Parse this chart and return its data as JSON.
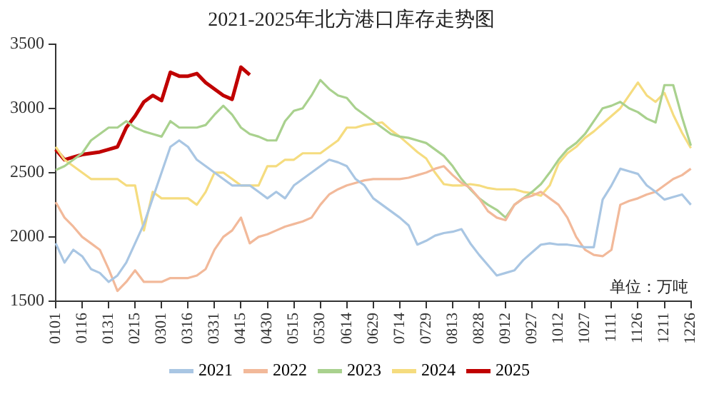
{
  "chart_data": {
    "type": "line",
    "title": "2021-2025年北方港口库存走势图",
    "categories": [
      "0101",
      null,
      null,
      "0116",
      null,
      null,
      "0131",
      null,
      null,
      "0215",
      null,
      null,
      "0301",
      null,
      null,
      "0316",
      null,
      null,
      "0331",
      null,
      null,
      "0415",
      null,
      null,
      "0430",
      null,
      null,
      "0515",
      null,
      null,
      "0530",
      null,
      null,
      "0614",
      null,
      null,
      "0629",
      null,
      null,
      "0714",
      null,
      null,
      "0729",
      null,
      null,
      "0813",
      null,
      null,
      "0828",
      null,
      null,
      "0912",
      null,
      null,
      "0927",
      null,
      null,
      "1012",
      null,
      null,
      "1027",
      null,
      null,
      "1111",
      null,
      null,
      "1126",
      null,
      null,
      "1211",
      null,
      null,
      "1226"
    ],
    "series": [
      {
        "name": "2021",
        "color": "#a9c6e3",
        "values": [
          1950,
          1800,
          1900,
          1850,
          1750,
          1720,
          1650,
          1700,
          1800,
          1950,
          2100,
          2300,
          2500,
          2700,
          2750,
          2700,
          2600,
          2550,
          2500,
          2450,
          2400,
          2400,
          2400,
          2350,
          2300,
          2350,
          2300,
          2400,
          2450,
          2500,
          2550,
          2600,
          2580,
          2550,
          2450,
          2400,
          2300,
          2250,
          2200,
          2150,
          2090,
          1940,
          1970,
          2010,
          2030,
          2040,
          2060,
          1950,
          1860,
          1780,
          1700,
          1720,
          1740,
          1820,
          1880,
          1940,
          1950,
          1940,
          1940,
          1930,
          1920,
          1920,
          2290,
          2400,
          2530,
          2510,
          2490,
          2400,
          2350,
          2290,
          2310,
          2330,
          2250
        ]
      },
      {
        "name": "2022",
        "color": "#f2b99a",
        "values": [
          2270,
          2150,
          2080,
          2000,
          1950,
          1900,
          1750,
          1580,
          1650,
          1740,
          1650,
          1650,
          1650,
          1680,
          1680,
          1680,
          1700,
          1750,
          1900,
          2000,
          2050,
          2150,
          1950,
          2000,
          2020,
          2050,
          2080,
          2100,
          2120,
          2150,
          2250,
          2330,
          2370,
          2400,
          2420,
          2440,
          2450,
          2450,
          2450,
          2450,
          2460,
          2480,
          2500,
          2530,
          2550,
          2480,
          2420,
          2380,
          2300,
          2200,
          2150,
          2130,
          2250,
          2300,
          2320,
          2350,
          2300,
          2250,
          2150,
          2000,
          1900,
          1860,
          1850,
          1900,
          2250,
          2280,
          2300,
          2330,
          2350,
          2400,
          2450,
          2480,
          2530
        ]
      },
      {
        "name": "2023",
        "color": "#a9d18e",
        "values": [
          2520,
          2550,
          2600,
          2650,
          2750,
          2800,
          2850,
          2850,
          2900,
          2850,
          2820,
          2800,
          2780,
          2900,
          2850,
          2850,
          2850,
          2870,
          2950,
          3020,
          2950,
          2850,
          2800,
          2780,
          2750,
          2750,
          2900,
          2980,
          3000,
          3100,
          3220,
          3150,
          3100,
          3080,
          3000,
          2950,
          2900,
          2850,
          2800,
          2780,
          2770,
          2750,
          2730,
          2680,
          2630,
          2550,
          2450,
          2370,
          2300,
          2250,
          2210,
          2150,
          2250,
          2300,
          2350,
          2410,
          2500,
          2600,
          2680,
          2730,
          2800,
          2900,
          3000,
          3020,
          3050,
          3000,
          2970,
          2920,
          2890,
          3180,
          3180,
          2930,
          2710
        ]
      },
      {
        "name": "2024",
        "color": "#f5dc7f",
        "values": [
          2700,
          2600,
          2550,
          2500,
          2450,
          2450,
          2450,
          2450,
          2400,
          2400,
          2050,
          2350,
          2300,
          2300,
          2300,
          2300,
          2250,
          2350,
          2500,
          2500,
          2450,
          2400,
          2400,
          2400,
          2550,
          2550,
          2600,
          2600,
          2650,
          2650,
          2650,
          2700,
          2750,
          2850,
          2850,
          2870,
          2880,
          2890,
          2830,
          2780,
          2720,
          2660,
          2610,
          2500,
          2410,
          2400,
          2400,
          2410,
          2400,
          2380,
          2370,
          2370,
          2370,
          2350,
          2340,
          2320,
          2400,
          2570,
          2650,
          2700,
          2770,
          2820,
          2880,
          2940,
          3000,
          3100,
          3200,
          3100,
          3050,
          3120,
          2950,
          2810,
          2690
        ]
      },
      {
        "name": "2025",
        "color": "#c00000",
        "values": [
          2680,
          2600,
          2620,
          2640,
          2650,
          2660,
          2680,
          2700,
          2850,
          2940,
          3050,
          3100,
          3060,
          3280,
          3250,
          3250,
          3270,
          3200,
          3150,
          3100,
          3070,
          3320,
          3260,
          null,
          null,
          null,
          null,
          null,
          null,
          null,
          null,
          null,
          null,
          null,
          null,
          null,
          null,
          null,
          null,
          null,
          null,
          null,
          null,
          null,
          null,
          null,
          null,
          null,
          null,
          null,
          null,
          null,
          null,
          null,
          null,
          null,
          null,
          null,
          null,
          null,
          null,
          null,
          null,
          null,
          null,
          null,
          null,
          null,
          null,
          null,
          null,
          null,
          null
        ]
      }
    ],
    "ylim": [
      1500,
      3500
    ],
    "yticks": [
      1500,
      2000,
      2500,
      3000,
      3500
    ],
    "grid": false,
    "marker": "none",
    "legend": "bottom",
    "annotations": [
      "单位：万吨"
    ]
  }
}
